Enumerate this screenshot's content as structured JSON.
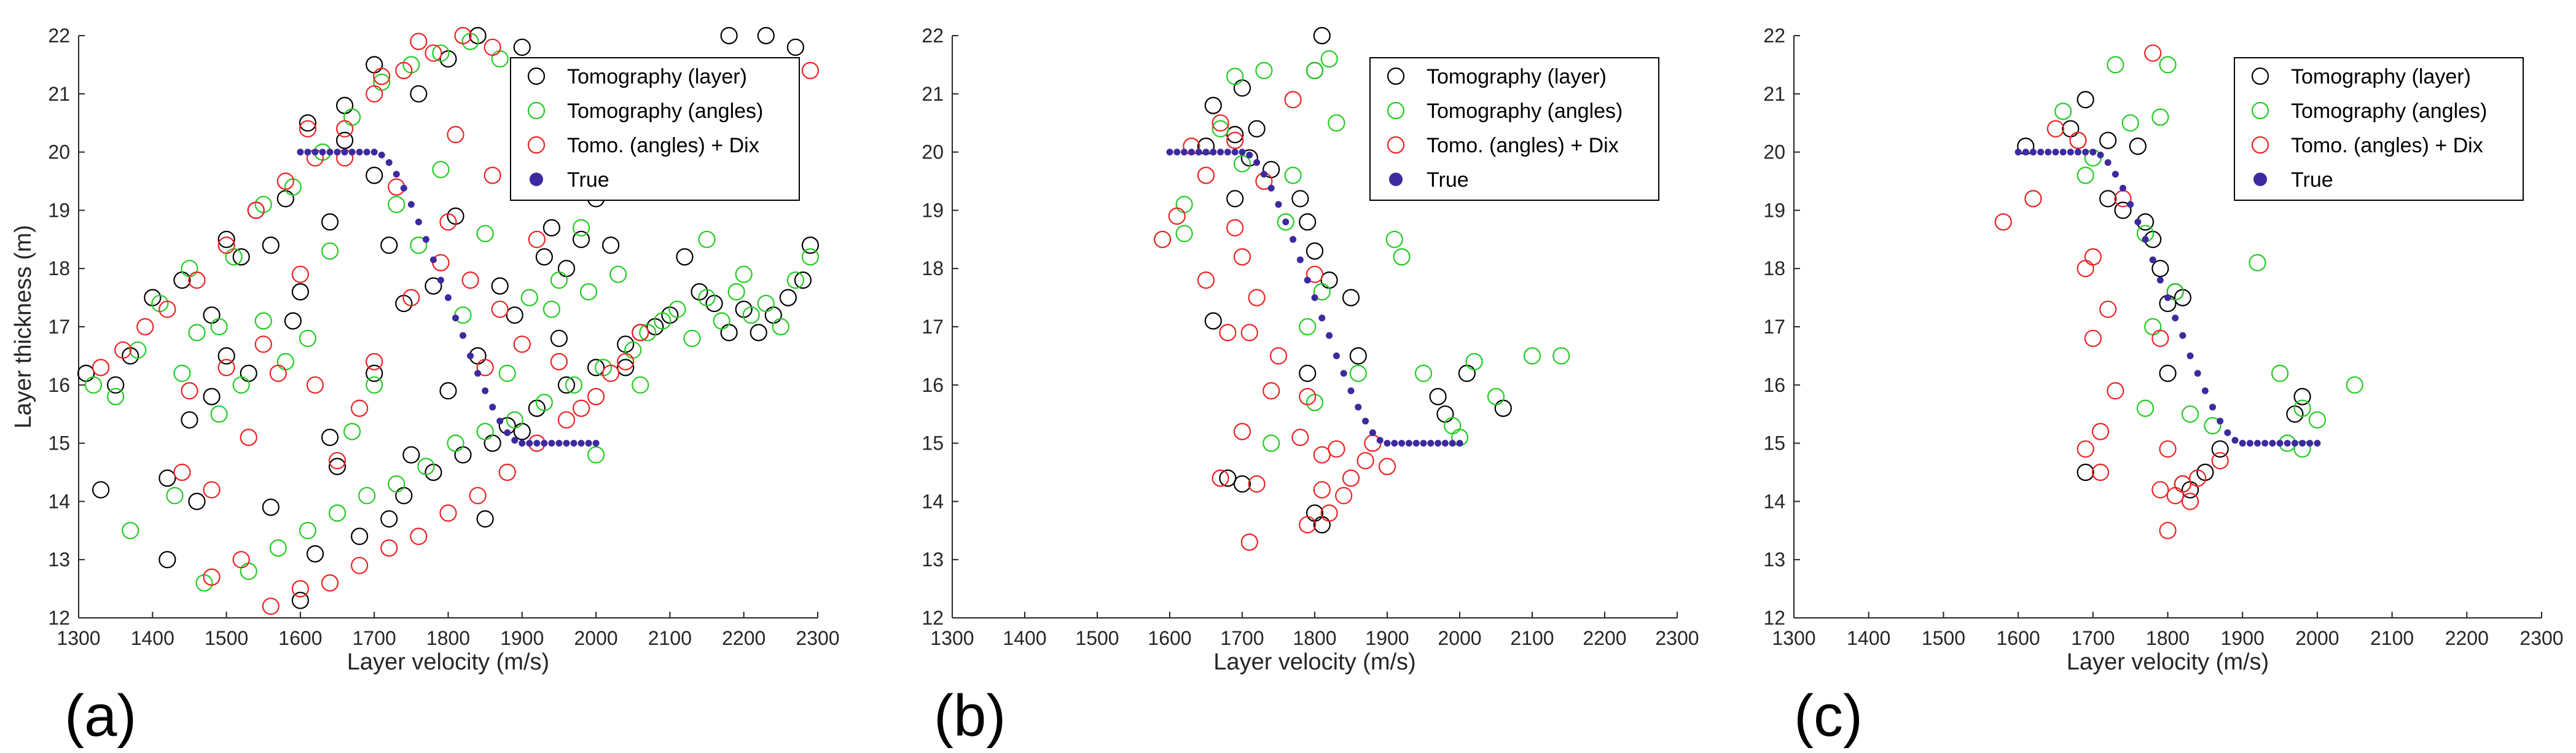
{
  "colors": {
    "tomo_layer": "#000000",
    "tomo_angles": "#22cc22",
    "tomo_dix": "#ee2222",
    "true": "#3d2a9e",
    "axis": "#262626"
  },
  "legend_labels": [
    "Tomography (layer)",
    "Tomography (angles)",
    "Tomo. (angles) + Dix",
    "True"
  ],
  "true_curve": {
    "x": [
      1600,
      1610,
      1620,
      1630,
      1640,
      1650,
      1660,
      1670,
      1680,
      1690,
      1700,
      1710,
      1720,
      1730,
      1740,
      1750,
      1760,
      1770,
      1780,
      1790,
      1800,
      1810,
      1820,
      1830,
      1840,
      1850,
      1860,
      1870,
      1880,
      1890,
      1900,
      1910,
      1920,
      1930,
      1940,
      1950,
      1960,
      1970,
      1980,
      1990,
      2000
    ],
    "y": [
      20,
      20,
      20,
      20,
      20,
      20,
      20,
      20,
      20,
      20,
      20,
      19.95,
      19.82,
      19.62,
      19.38,
      19.1,
      18.8,
      18.5,
      18.15,
      17.8,
      17.5,
      17.15,
      16.85,
      16.5,
      16.2,
      15.9,
      15.62,
      15.38,
      15.18,
      15.05,
      15,
      15,
      15,
      15,
      15,
      15,
      15,
      15,
      15,
      15,
      15
    ]
  },
  "chart_data": [
    {
      "type": "scatter",
      "panel_label": "(a)",
      "xlabel": "Layer velocity   (m/s)",
      "ylabel": "Layer thickness   (m)",
      "xlim": [
        1300,
        2300
      ],
      "ylim": [
        12,
        22
      ],
      "xticks": [
        1300,
        1400,
        1500,
        1600,
        1700,
        1800,
        1900,
        2000,
        2100,
        2200,
        2300
      ],
      "yticks": [
        12,
        13,
        14,
        15,
        16,
        17,
        18,
        19,
        20,
        21,
        22
      ],
      "legend_position": "top-right",
      "true_series": "True",
      "scatter_series": [
        {
          "name": "Tomography (layer)",
          "x": [
            1310,
            1330,
            1350,
            1370,
            1400,
            1420,
            1440,
            1460,
            1480,
            1500,
            1520,
            1540,
            1560,
            1580,
            1600,
            1620,
            1640,
            1660,
            1680,
            1700,
            1720,
            1740,
            1760,
            1780,
            1800,
            1820,
            1840,
            1860,
            1880,
            1900,
            1920,
            1940,
            1960,
            1980,
            2000,
            2020,
            2040,
            2060,
            2080,
            2100,
            2120,
            2140,
            2160,
            2180,
            2200,
            2220,
            2240,
            2260,
            2280,
            2290,
            1450,
            1500,
            1560,
            1600,
            1640,
            1700,
            1750,
            1800,
            1850,
            1900,
            1950,
            2000,
            1420,
            1480,
            1530,
            1590,
            1650,
            1720,
            1780,
            1840,
            1890,
            1960,
            2040,
            2180,
            2230,
            2270,
            1610,
            1660,
            1700,
            1740,
            1810,
            1870,
            1930
          ],
          "y": [
            16.2,
            14.2,
            16.0,
            16.5,
            17.5,
            13.0,
            17.8,
            14.0,
            17.2,
            18.5,
            18.2,
            19.0,
            18.4,
            19.2,
            12.3,
            13.1,
            18.8,
            20.2,
            13.4,
            21.5,
            13.7,
            14.1,
            21.0,
            14.5,
            21.6,
            14.8,
            22.0,
            15.0,
            15.3,
            21.8,
            15.6,
            18.7,
            16.0,
            18.5,
            16.3,
            18.4,
            16.7,
            16.9,
            17.0,
            17.2,
            18.2,
            17.6,
            17.4,
            16.9,
            17.3,
            16.9,
            17.2,
            17.5,
            17.8,
            18.4,
            15.4,
            16.5,
            13.9,
            17.6,
            15.1,
            16.2,
            14.8,
            15.9,
            13.7,
            15.2,
            16.8,
            19.2,
            14.4,
            15.8,
            16.2,
            17.1,
            14.6,
            18.4,
            17.7,
            16.5,
            17.2,
            18.0,
            16.3,
            22.0,
            22.0,
            21.8,
            20.5,
            20.8,
            19.6,
            17.4,
            18.9,
            17.7,
            18.2
          ]
        },
        {
          "name": "Tomography (angles)",
          "x": [
            1320,
            1350,
            1370,
            1380,
            1410,
            1430,
            1450,
            1470,
            1490,
            1510,
            1530,
            1550,
            1570,
            1590,
            1610,
            1630,
            1650,
            1670,
            1690,
            1710,
            1730,
            1750,
            1770,
            1790,
            1810,
            1830,
            1850,
            1870,
            1890,
            1910,
            1930,
            1950,
            1970,
            1990,
            2010,
            2030,
            2050,
            2070,
            2090,
            2110,
            2130,
            2150,
            2170,
            2190,
            2210,
            2230,
            2250,
            2270,
            2290,
            1460,
            1520,
            1580,
            1640,
            1700,
            1760,
            1820,
            1880,
            1940,
            2000,
            1440,
            1490,
            1550,
            1610,
            1670,
            1730,
            1790,
            1850,
            1910,
            1980,
            2060,
            2150,
            2200
          ],
          "y": [
            16.0,
            15.8,
            13.5,
            16.6,
            17.4,
            14.1,
            18.0,
            12.6,
            17.0,
            18.2,
            12.8,
            19.1,
            13.2,
            19.4,
            13.5,
            20.0,
            13.8,
            20.6,
            14.1,
            21.2,
            14.3,
            21.5,
            14.6,
            21.7,
            15.0,
            21.9,
            15.2,
            21.6,
            15.4,
            19.5,
            15.7,
            17.8,
            16.0,
            17.6,
            16.3,
            17.9,
            16.6,
            16.9,
            17.1,
            17.3,
            16.8,
            17.5,
            17.1,
            17.6,
            17.2,
            17.4,
            17.0,
            17.8,
            18.2,
            16.9,
            16.0,
            16.4,
            18.3,
            16.0,
            18.4,
            17.2,
            16.2,
            17.3,
            14.8,
            16.2,
            15.5,
            17.1,
            16.8,
            15.2,
            19.1,
            19.7,
            18.6,
            17.5,
            18.7,
            16.0,
            18.5,
            17.9
          ]
        },
        {
          "name": "Tomo. (angles) + Dix",
          "x": [
            1330,
            1360,
            1390,
            1420,
            1440,
            1460,
            1480,
            1500,
            1520,
            1540,
            1560,
            1580,
            1600,
            1620,
            1640,
            1660,
            1680,
            1700,
            1720,
            1740,
            1760,
            1780,
            1800,
            1820,
            1840,
            1860,
            1880,
            1900,
            1920,
            1940,
            1960,
            1980,
            2000,
            2020,
            2040,
            2060,
            1450,
            1500,
            1550,
            1600,
            1650,
            1700,
            1750,
            1800,
            1850,
            1900,
            1950,
            1480,
            1530,
            1570,
            1620,
            1680,
            1730,
            1790,
            1830,
            1870,
            1920,
            1610,
            1660,
            1710,
            1760,
            1810,
            1860,
            2290
          ],
          "y": [
            16.3,
            16.6,
            17.0,
            17.3,
            14.5,
            17.8,
            12.7,
            18.4,
            13.0,
            19.0,
            12.2,
            19.5,
            12.5,
            19.9,
            12.6,
            20.4,
            12.9,
            21.0,
            13.2,
            21.4,
            13.4,
            21.7,
            13.8,
            22.0,
            14.1,
            21.8,
            14.5,
            21.4,
            15.0,
            19.4,
            15.4,
            15.6,
            15.8,
            16.2,
            16.4,
            16.9,
            15.9,
            16.3,
            16.7,
            17.9,
            14.7,
            16.4,
            17.5,
            18.8,
            16.3,
            16.7,
            16.4,
            14.2,
            15.1,
            16.2,
            16.0,
            15.6,
            19.4,
            18.1,
            17.8,
            17.3,
            18.5,
            20.4,
            19.9,
            21.3,
            21.9,
            20.3,
            19.6,
            21.4
          ]
        }
      ]
    },
    {
      "type": "scatter",
      "panel_label": "(b)",
      "xlabel": "Layer velocity   (m/s)",
      "ylabel": "",
      "xlim": [
        1300,
        2300
      ],
      "ylim": [
        12,
        22
      ],
      "xticks": [
        1300,
        1400,
        1500,
        1600,
        1700,
        1800,
        1900,
        2000,
        2100,
        2200,
        2300
      ],
      "yticks": [
        12,
        13,
        14,
        15,
        16,
        17,
        18,
        19,
        20,
        21,
        22
      ],
      "legend_position": "top-right",
      "true_series": "True",
      "scatter_series": [
        {
          "name": "Tomography (layer)",
          "x": [
            1810,
            1800,
            1720,
            1700,
            1690,
            1650,
            1660,
            1710,
            1740,
            1780,
            1790,
            1800,
            1820,
            1850,
            1860,
            1980,
            1970,
            2010,
            2060,
            1680,
            1700,
            1810,
            1800,
            1790,
            1660,
            1690
          ],
          "y": [
            22.0,
            21.4,
            20.4,
            21.1,
            20.3,
            20.1,
            20.8,
            19.9,
            19.7,
            19.2,
            18.8,
            18.3,
            17.8,
            17.5,
            16.5,
            15.5,
            15.8,
            16.2,
            15.6,
            14.4,
            14.3,
            13.6,
            13.8,
            16.2,
            17.1,
            19.2
          ]
        },
        {
          "name": "Tomography (angles)",
          "x": [
            1590,
            1620,
            1670,
            1690,
            1760,
            1800,
            1820,
            1830,
            1810,
            1860,
            1910,
            1920,
            1950,
            1990,
            2000,
            2020,
            2050,
            2100,
            2140,
            1730,
            1790,
            1800,
            1620,
            1700,
            1740,
            1770
          ],
          "y": [
            18.5,
            19.1,
            20.4,
            21.3,
            18.8,
            21.4,
            21.6,
            20.5,
            17.6,
            16.2,
            18.5,
            18.2,
            16.2,
            15.3,
            15.1,
            16.4,
            15.8,
            16.5,
            16.5,
            21.4,
            17.0,
            15.7,
            18.6,
            19.8,
            15.0,
            19.6
          ]
        },
        {
          "name": "Tomo. (angles) + Dix",
          "x": [
            1590,
            1610,
            1630,
            1650,
            1670,
            1690,
            1700,
            1710,
            1720,
            1730,
            1750,
            1770,
            1780,
            1790,
            1800,
            1810,
            1820,
            1830,
            1840,
            1850,
            1870,
            1880,
            1900,
            1680,
            1700,
            1710,
            1720,
            1740,
            1790,
            1810,
            1650,
            1670,
            1690
          ],
          "y": [
            18.5,
            18.9,
            20.1,
            19.6,
            20.5,
            20.2,
            18.2,
            16.9,
            17.5,
            19.5,
            16.5,
            20.9,
            15.1,
            15.8,
            17.9,
            14.2,
            13.8,
            14.9,
            14.1,
            14.4,
            14.7,
            15.0,
            14.6,
            16.9,
            15.2,
            13.3,
            14.3,
            15.9,
            13.6,
            14.8,
            17.8,
            14.4,
            18.7
          ]
        }
      ]
    },
    {
      "type": "scatter",
      "panel_label": "(c)",
      "xlabel": "Layer velocity   (m/s)",
      "ylabel": "",
      "xlim": [
        1300,
        2300
      ],
      "ylim": [
        12,
        22
      ],
      "xticks": [
        1300,
        1400,
        1500,
        1600,
        1700,
        1800,
        1900,
        2000,
        2100,
        2200,
        2300
      ],
      "yticks": [
        12,
        13,
        14,
        15,
        16,
        17,
        18,
        19,
        20,
        21,
        22
      ],
      "legend_position": "top-right",
      "true_series": "True",
      "scatter_series": [
        {
          "name": "Tomography (layer)",
          "x": [
            1610,
            1670,
            1690,
            1720,
            1740,
            1760,
            1770,
            1780,
            1790,
            1800,
            1810,
            1820,
            1830,
            1850,
            1870,
            1970,
            1980,
            1690,
            1720,
            1800,
            1820
          ],
          "y": [
            20.1,
            20.4,
            20.9,
            20.2,
            19.0,
            20.1,
            18.8,
            18.5,
            18.0,
            16.2,
            17.6,
            17.5,
            14.2,
            14.5,
            14.9,
            15.5,
            15.8,
            14.5,
            19.2,
            17.4,
            14.3
          ]
        },
        {
          "name": "Tomography (angles)",
          "x": [
            1620,
            1660,
            1680,
            1700,
            1730,
            1750,
            1770,
            1780,
            1800,
            1830,
            1860,
            1920,
            1950,
            1980,
            2000,
            2050,
            1690,
            1770,
            1790,
            1810,
            1960,
            1980
          ],
          "y": [
            19.2,
            20.7,
            20.2,
            19.9,
            21.5,
            20.5,
            18.6,
            17.0,
            21.5,
            15.5,
            15.3,
            18.1,
            16.2,
            15.6,
            15.4,
            16.0,
            19.6,
            15.6,
            20.6,
            17.6,
            15.0,
            14.9
          ]
        },
        {
          "name": "Tomo. (angles) + Dix",
          "x": [
            1580,
            1620,
            1650,
            1680,
            1690,
            1700,
            1710,
            1720,
            1730,
            1740,
            1780,
            1790,
            1800,
            1810,
            1820,
            1830,
            1840,
            1870,
            1690,
            1700,
            1710,
            1790,
            1800
          ],
          "y": [
            18.8,
            19.2,
            20.4,
            20.2,
            18.0,
            16.8,
            15.2,
            17.3,
            15.9,
            19.2,
            21.7,
            14.2,
            13.5,
            14.1,
            14.3,
            14.0,
            14.4,
            14.7,
            14.9,
            18.2,
            14.5,
            16.8,
            14.9
          ]
        }
      ]
    }
  ]
}
